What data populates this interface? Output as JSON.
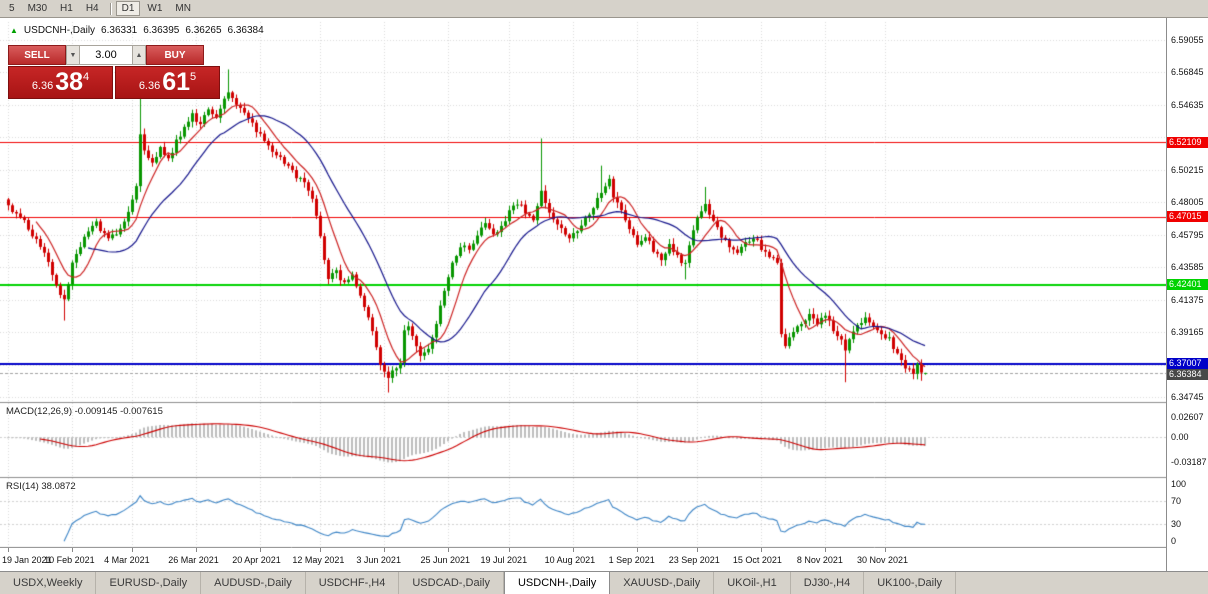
{
  "toolbar": {
    "periods": [
      {
        "label": "5",
        "active": false
      },
      {
        "label": "M30",
        "active": false
      },
      {
        "label": "H1",
        "active": false
      },
      {
        "label": "H4",
        "active": false
      },
      {
        "label": "D1",
        "active": true
      },
      {
        "label": "W1",
        "active": false
      },
      {
        "label": "MN",
        "active": false
      }
    ],
    "divider_after": "H4"
  },
  "icons": {
    "spin_up": "▲",
    "spin_down": "▼"
  },
  "ohlc_header": {
    "arrow": "▲",
    "symbol": "USDCNH-,Daily",
    "open": "6.36331",
    "high": "6.36395",
    "low": "6.36265",
    "close": "6.36384"
  },
  "trade_panel": {
    "sell_label": "SELL",
    "buy_label": "BUY",
    "volume": "3.00",
    "bid": {
      "base": "6.36",
      "pips": "38",
      "frac": "4"
    },
    "ask": {
      "base": "6.36",
      "pips": "61",
      "frac": "5"
    }
  },
  "tabs": [
    {
      "label": "USDX,Weekly",
      "active": false
    },
    {
      "label": "EURUSD-,Daily",
      "active": false
    },
    {
      "label": "AUDUSD-,Daily",
      "active": false
    },
    {
      "label": "USDCHF-,H4",
      "active": false
    },
    {
      "label": "USDCAD-,Daily",
      "active": false
    },
    {
      "label": "USDCNH-,Daily",
      "active": true
    },
    {
      "label": "XAUUSD-,Daily",
      "active": false
    },
    {
      "label": "UKOil-,H1",
      "active": false
    },
    {
      "label": "DJ30-,H4",
      "active": false
    },
    {
      "label": "UK100-,Daily",
      "active": false
    }
  ],
  "chart_data": {
    "type": "candlestick",
    "symbol": "USDCNH-",
    "timeframe": "Daily",
    "current_ohlc": {
      "open": 6.36331,
      "high": 6.36395,
      "low": 6.36265,
      "close": 6.36384
    },
    "y_ticks": [
      {
        "label": "6.59055",
        "value": 6.59055
      },
      {
        "label": "6.56845",
        "value": 6.56845
      },
      {
        "label": "6.54635",
        "value": 6.54635
      },
      {
        "label": "6.50215",
        "value": 6.50215
      },
      {
        "label": "6.48005",
        "value": 6.48005
      },
      {
        "label": "6.45795",
        "value": 6.45795
      },
      {
        "label": "6.43585",
        "value": 6.43585
      },
      {
        "label": "6.41375",
        "value": 6.41375
      },
      {
        "label": "6.39165",
        "value": 6.39165
      },
      {
        "label": "6.34745",
        "value": 6.34745
      }
    ],
    "y_grid": [
      6.59055,
      6.56845,
      6.54635,
      6.52425,
      6.50215,
      6.48005,
      6.45795,
      6.43585,
      6.41375,
      6.39165,
      6.36955,
      6.34745
    ],
    "levels": [
      {
        "label": "6.52109",
        "value": 6.52109,
        "color": "#f00000",
        "width": 1
      },
      {
        "label": "6.47015",
        "value": 6.47015,
        "color": "#f00000",
        "width": 1
      },
      {
        "label": "6.42401",
        "value": 6.42401,
        "color": "#00d200",
        "width": 2
      },
      {
        "label": "6.37007",
        "value": 6.37007,
        "color": "#0000c8",
        "width": 2
      }
    ],
    "bid_marker": {
      "label": "6.36384",
      "value": 6.36384,
      "color": "#484848"
    },
    "x_dates": [
      {
        "label": "19 Jan 2021",
        "index": 0
      },
      {
        "label": "10 Feb 2021",
        "index": 16
      },
      {
        "label": "4 Mar 2021",
        "index": 31
      },
      {
        "label": "26 Mar 2021",
        "index": 47
      },
      {
        "label": "20 Apr 2021",
        "index": 63
      },
      {
        "label": "12 May 2021",
        "index": 78
      },
      {
        "label": "3 Jun 2021",
        "index": 94
      },
      {
        "label": "25 Jun 2021",
        "index": 110
      },
      {
        "label": "19 Jul 2021",
        "index": 125
      },
      {
        "label": "10 Aug 2021",
        "index": 141
      },
      {
        "label": "1 Sep 2021",
        "index": 157
      },
      {
        "label": "23 Sep 2021",
        "index": 172
      },
      {
        "label": "15 Oct 2021",
        "index": 188
      },
      {
        "label": "8 Nov 2021",
        "index": 204
      },
      {
        "label": "30 Nov 2021",
        "index": 219
      }
    ],
    "candles": {
      "count": 230,
      "up_color": "#089600",
      "down_color": "#d00000",
      "close_anchors": [
        [
          0,
          6.478
        ],
        [
          2,
          6.472
        ],
        [
          4,
          6.466
        ],
        [
          6,
          6.458
        ],
        [
          9,
          6.446
        ],
        [
          12,
          6.424
        ],
        [
          14,
          6.412
        ],
        [
          16,
          6.438
        ],
        [
          19,
          6.458
        ],
        [
          22,
          6.466
        ],
        [
          25,
          6.455
        ],
        [
          28,
          6.461
        ],
        [
          30,
          6.472
        ],
        [
          32,
          6.492
        ],
        [
          33,
          6.528
        ],
        [
          34,
          6.515
        ],
        [
          36,
          6.507
        ],
        [
          38,
          6.517
        ],
        [
          40,
          6.509
        ],
        [
          42,
          6.521
        ],
        [
          44,
          6.531
        ],
        [
          46,
          6.539
        ],
        [
          48,
          6.534
        ],
        [
          50,
          6.545
        ],
        [
          52,
          6.538
        ],
        [
          54,
          6.551
        ],
        [
          55,
          6.556
        ],
        [
          57,
          6.548
        ],
        [
          59,
          6.541
        ],
        [
          61,
          6.533
        ],
        [
          63,
          6.525
        ],
        [
          65,
          6.518
        ],
        [
          68,
          6.51
        ],
        [
          71,
          6.501
        ],
        [
          74,
          6.493
        ],
        [
          76,
          6.483
        ],
        [
          78,
          6.455
        ],
        [
          80,
          6.429
        ],
        [
          82,
          6.433
        ],
        [
          84,
          6.424
        ],
        [
          86,
          6.429
        ],
        [
          88,
          6.418
        ],
        [
          90,
          6.401
        ],
        [
          92,
          6.381
        ],
        [
          93,
          6.369
        ],
        [
          95,
          6.359
        ],
        [
          96,
          6.364
        ],
        [
          98,
          6.372
        ],
        [
          99,
          6.391
        ],
        [
          100,
          6.397
        ],
        [
          101,
          6.388
        ],
        [
          103,
          6.376
        ],
        [
          105,
          6.381
        ],
        [
          107,
          6.397
        ],
        [
          109,
          6.419
        ],
        [
          111,
          6.439
        ],
        [
          113,
          6.451
        ],
        [
          115,
          6.447
        ],
        [
          117,
          6.459
        ],
        [
          119,
          6.467
        ],
        [
          121,
          6.457
        ],
        [
          123,
          6.464
        ],
        [
          125,
          6.474
        ],
        [
          127,
          6.479
        ],
        [
          129,
          6.474
        ],
        [
          131,
          6.469
        ],
        [
          133,
          6.489
        ],
        [
          134,
          6.478
        ],
        [
          136,
          6.47
        ],
        [
          138,
          6.462
        ],
        [
          140,
          6.456
        ],
        [
          142,
          6.462
        ],
        [
          144,
          6.47
        ],
        [
          146,
          6.477
        ],
        [
          148,
          6.487
        ],
        [
          150,
          6.494
        ],
        [
          151,
          6.485
        ],
        [
          153,
          6.473
        ],
        [
          155,
          6.461
        ],
        [
          157,
          6.452
        ],
        [
          159,
          6.457
        ],
        [
          161,
          6.448
        ],
        [
          163,
          6.442
        ],
        [
          165,
          6.45
        ],
        [
          167,
          6.444
        ],
        [
          169,
          6.437
        ],
        [
          171,
          6.461
        ],
        [
          172,
          6.469
        ],
        [
          174,
          6.477
        ],
        [
          176,
          6.466
        ],
        [
          178,
          6.457
        ],
        [
          180,
          6.451
        ],
        [
          182,
          6.446
        ],
        [
          184,
          6.452
        ],
        [
          186,
          6.457
        ],
        [
          188,
          6.449
        ],
        [
          190,
          6.443
        ],
        [
          192,
          6.438
        ],
        [
          193,
          6.39
        ],
        [
          194,
          6.384
        ],
        [
          196,
          6.391
        ],
        [
          198,
          6.398
        ],
        [
          200,
          6.404
        ],
        [
          202,
          6.398
        ],
        [
          204,
          6.402
        ],
        [
          206,
          6.394
        ],
        [
          208,
          6.387
        ],
        [
          209,
          6.379
        ],
        [
          210,
          6.388
        ],
        [
          212,
          6.397
        ],
        [
          214,
          6.401
        ],
        [
          216,
          6.396
        ],
        [
          218,
          6.391
        ],
        [
          220,
          6.387
        ],
        [
          222,
          6.376
        ],
        [
          224,
          6.368
        ],
        [
          226,
          6.365
        ],
        [
          227,
          6.37
        ],
        [
          228,
          6.366
        ],
        [
          229,
          6.36384
        ]
      ],
      "spikes": [
        {
          "i": 14,
          "low": 6.3995
        },
        {
          "i": 33,
          "high": 6.566
        },
        {
          "i": 55,
          "high": 6.5705
        },
        {
          "i": 95,
          "low": 6.3505
        },
        {
          "i": 133,
          "high": 6.5235
        },
        {
          "i": 148,
          "high": 6.505
        },
        {
          "i": 169,
          "low": 6.4275
        },
        {
          "i": 174,
          "high": 6.4905
        },
        {
          "i": 209,
          "low": 6.3575
        },
        {
          "i": 228,
          "low": 6.3585
        }
      ]
    },
    "moving_averages": [
      {
        "period": 8,
        "type": "sma",
        "color": "#cc2222"
      },
      {
        "period": 21,
        "type": "sma",
        "color": "#16168c"
      }
    ],
    "macd": {
      "label": "MACD(12,26,9)",
      "values_text": "-0.009145 -0.007615",
      "fast": 12,
      "slow": 26,
      "signal": 9,
      "hist_color": "#bdbdbd",
      "signal_color": "#cc0000",
      "ticks": [
        {
          "label": "0.02607",
          "value": 0.02607
        },
        {
          "label": "0.00",
          "value": 0
        },
        {
          "label": "-0.03187",
          "value": -0.03187
        }
      ]
    },
    "rsi": {
      "label": "RSI(14)",
      "value_text": "38.0872",
      "period": 14,
      "color": "#3d85c6",
      "levels": [
        70,
        30
      ],
      "ticks": [
        {
          "label": "100",
          "value": 100
        },
        {
          "label": "70",
          "value": 70
        },
        {
          "label": "30",
          "value": 30
        },
        {
          "label": "0",
          "value": 0
        }
      ]
    }
  }
}
